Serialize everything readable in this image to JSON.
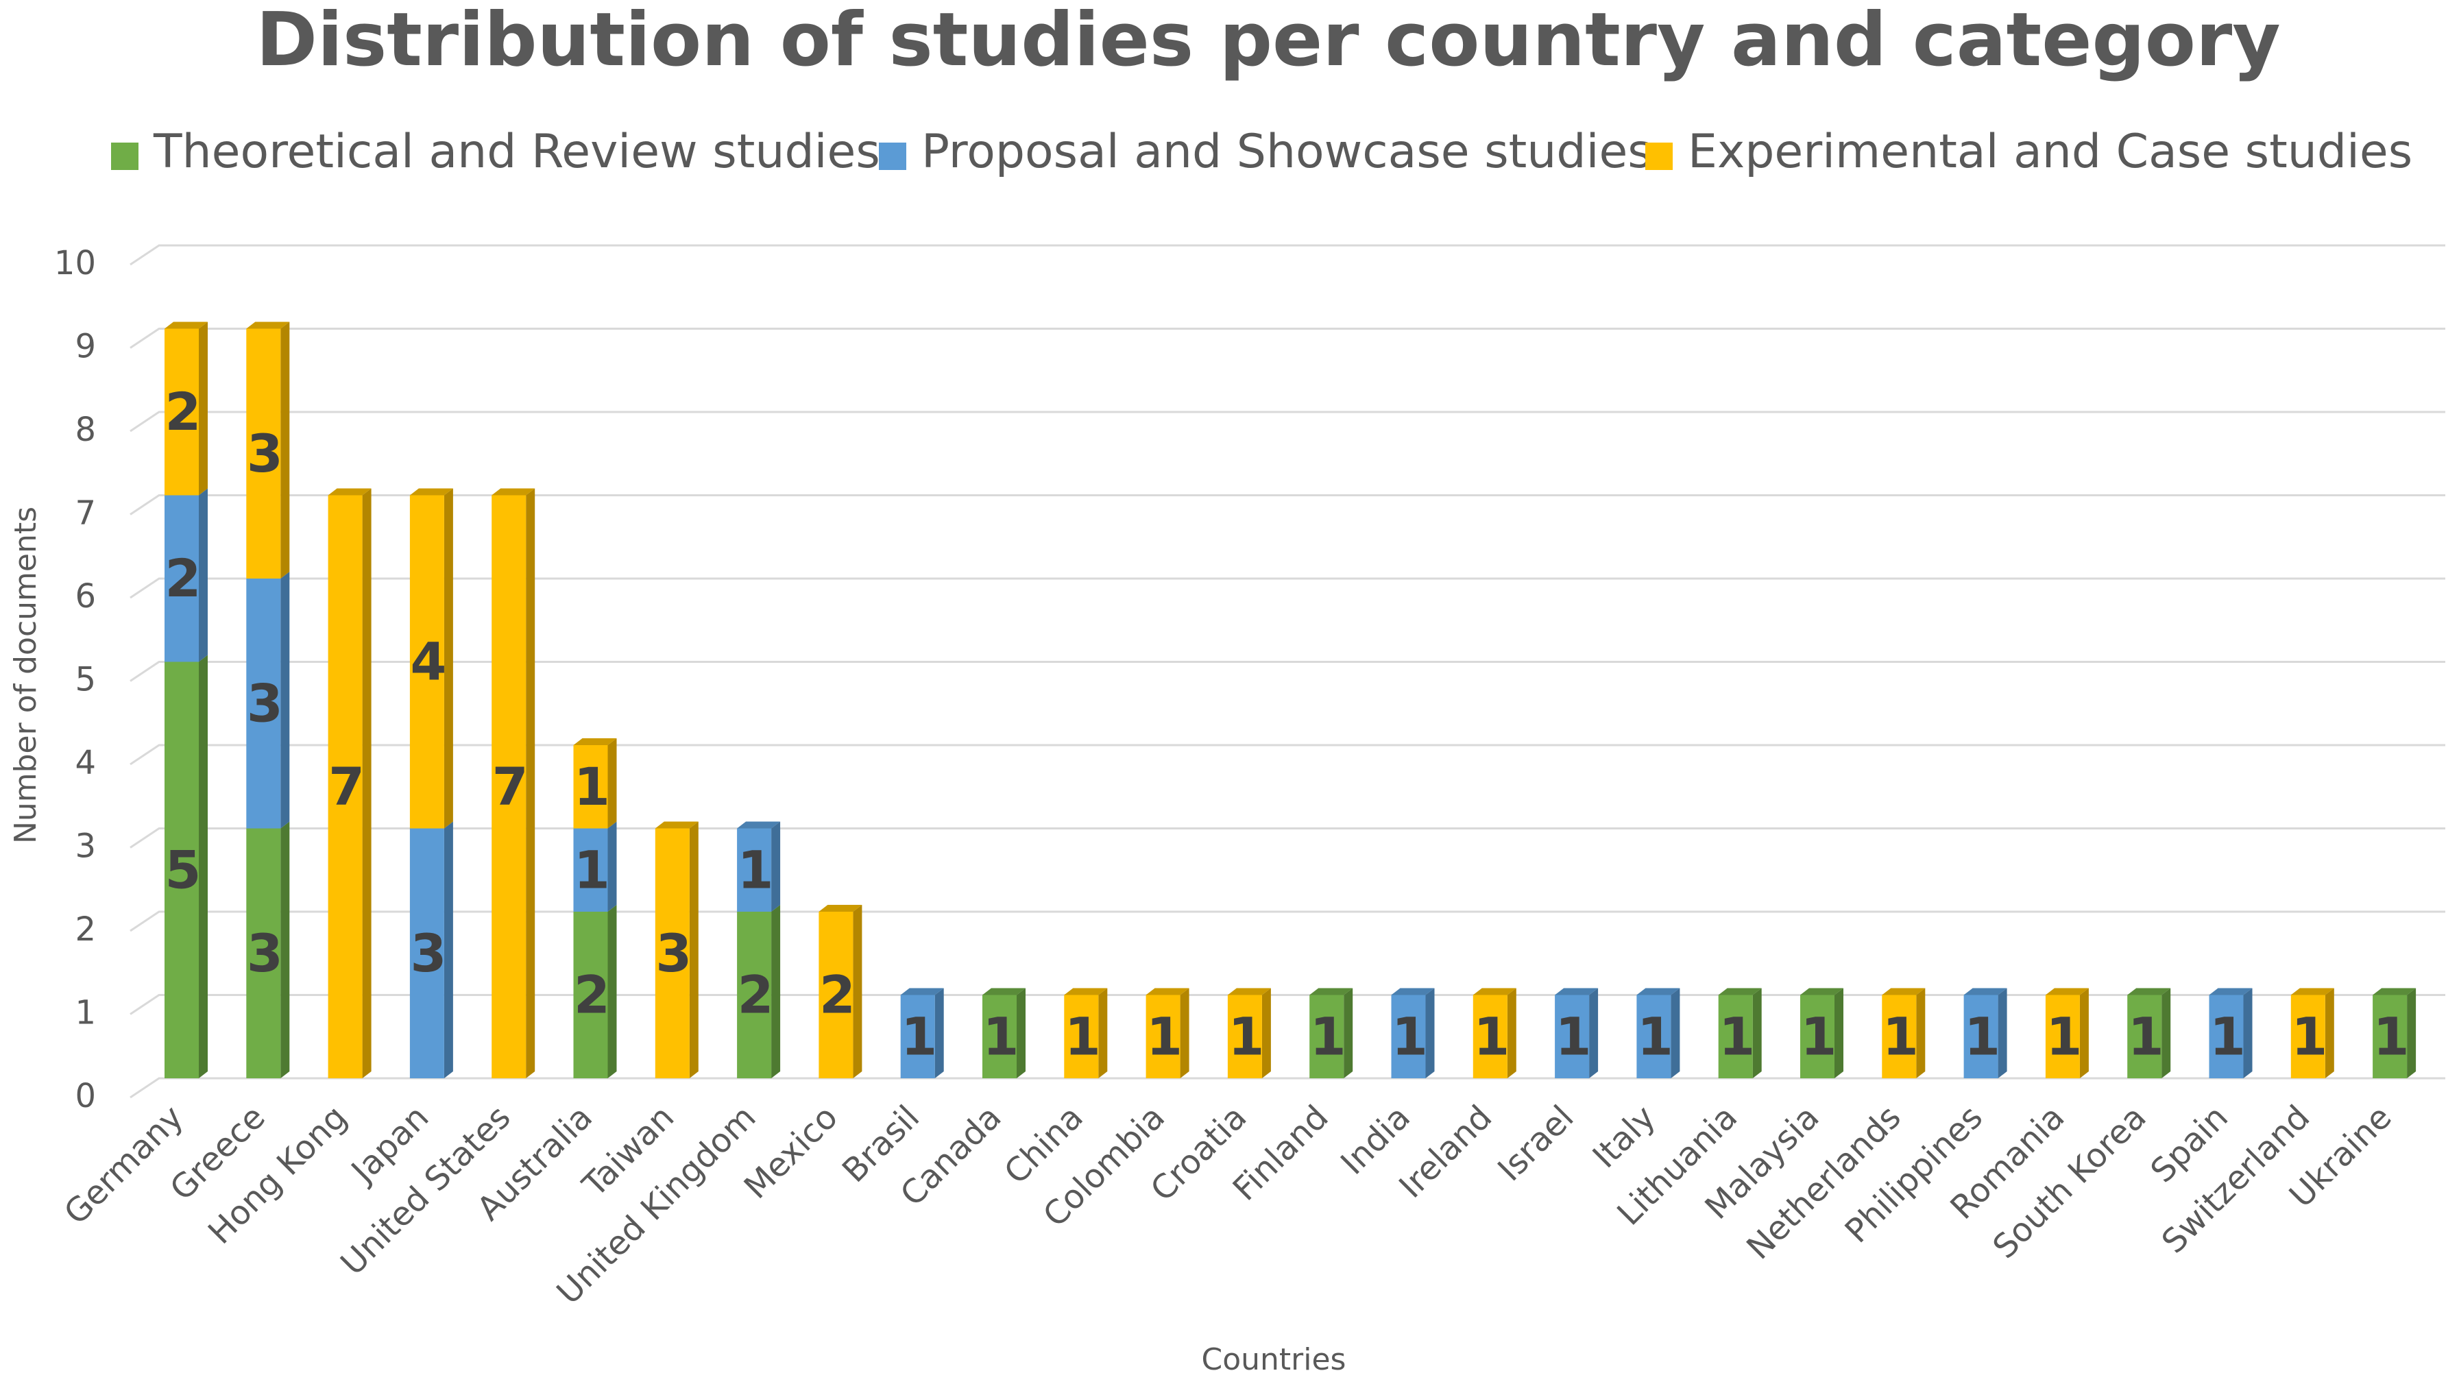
{
  "chart_data": {
    "type": "bar",
    "stacked": true,
    "title": "Distribution of studies per country and category",
    "xlabel": "Countries",
    "ylabel": "Number of documents",
    "ylim": [
      0,
      10
    ],
    "yticks": [
      0,
      1,
      2,
      3,
      4,
      5,
      6,
      7,
      8,
      9,
      10
    ],
    "grid": true,
    "legend_position": "top",
    "categories": [
      "Germany",
      "Greece",
      "Hong Kong",
      "Japan",
      "United States",
      "Australia",
      "Taiwan",
      "United Kingdom",
      "Mexico",
      "Brasil",
      "Canada",
      "China",
      "Colombia",
      "Croatia",
      "Finland",
      "India",
      "Ireland",
      "Israel",
      "Italy",
      "Lithuania",
      "Malaysia",
      "Netherlands",
      "Philippines",
      "Romania",
      "South Korea",
      "Spain",
      "Switzerland",
      "Ukraine"
    ],
    "series": [
      {
        "name": "Theoretical and Review studies",
        "color": "#70AD47",
        "side_color": "#4E7A31",
        "top_color": "#5A8C39",
        "values": [
          5,
          3,
          0,
          0,
          0,
          2,
          0,
          2,
          0,
          0,
          1,
          0,
          0,
          0,
          1,
          0,
          0,
          0,
          0,
          1,
          1,
          0,
          0,
          0,
          1,
          0,
          0,
          1
        ]
      },
      {
        "name": "Proposal and Showcase studies",
        "color": "#5B9BD5",
        "side_color": "#3F6E98",
        "top_color": "#4A80B0",
        "values": [
          2,
          3,
          0,
          3,
          0,
          1,
          0,
          1,
          0,
          1,
          0,
          0,
          0,
          0,
          0,
          1,
          0,
          1,
          1,
          0,
          0,
          0,
          1,
          0,
          0,
          1,
          0,
          0
        ]
      },
      {
        "name": "Experimental and Case studies",
        "color": "#FFC000",
        "side_color": "#B38600",
        "top_color": "#CC9A00",
        "values": [
          2,
          3,
          7,
          4,
          7,
          1,
          3,
          0,
          2,
          0,
          0,
          1,
          1,
          1,
          0,
          0,
          1,
          0,
          0,
          0,
          0,
          1,
          0,
          1,
          0,
          0,
          1,
          0
        ]
      }
    ]
  }
}
